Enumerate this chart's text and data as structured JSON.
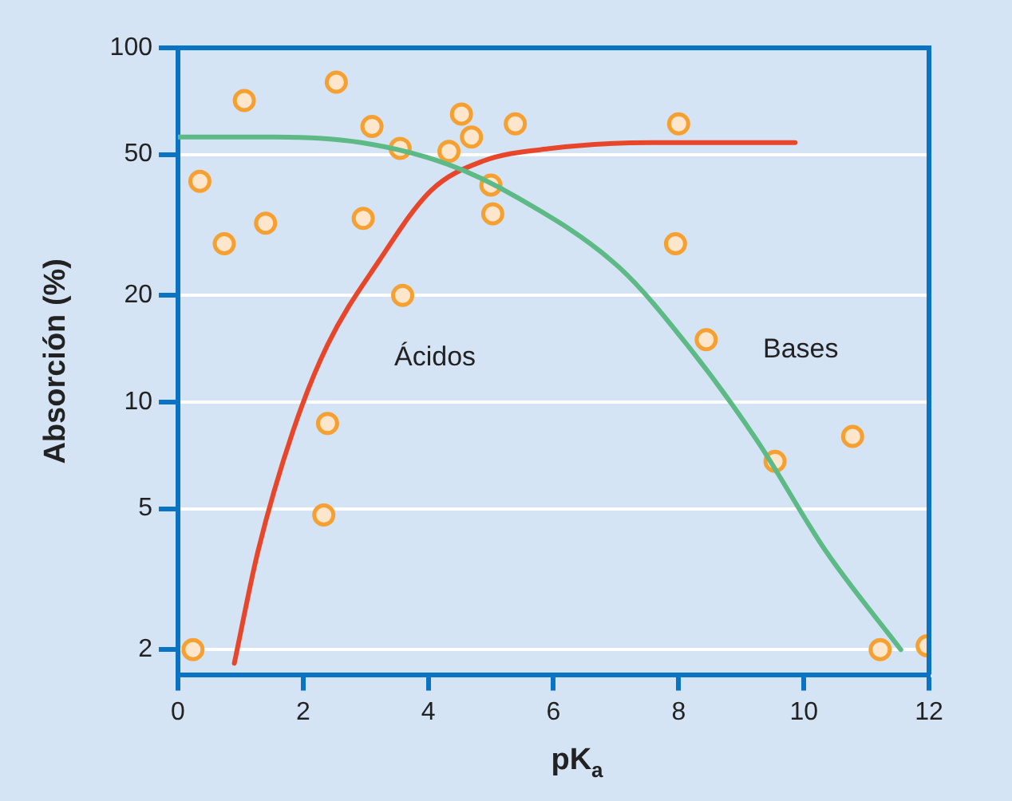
{
  "chart_data": {
    "type": "scatter",
    "xlabel": "pK$_{a}$",
    "ylabel": "Absorción (%)",
    "xlim": [
      0,
      12
    ],
    "xticks": [
      0,
      2,
      4,
      6,
      8,
      10,
      12
    ],
    "ylim": [
      1.7,
      100
    ],
    "yticks": [
      2,
      5,
      10,
      20,
      50,
      100
    ],
    "log": "y",
    "grid": "y",
    "legend": false,
    "marker": "circle",
    "annotations": [
      "Ácidos",
      "Bases"
    ],
    "series": [
      {
        "color": "#f5a030",
        "x": [
          0.35,
          1.06,
          0.74,
          1.4,
          2.53,
          3.1,
          3.55,
          2.96,
          3.59,
          2.39,
          2.33,
          0.24,
          4.33,
          4.53,
          4.69,
          5.0,
          5.03,
          5.39,
          8.0,
          7.95,
          8.44,
          9.54,
          10.78,
          11.22,
          11.97
        ],
        "values": [
          42,
          71,
          28,
          32,
          80,
          60,
          52,
          33,
          20,
          8.7,
          4.8,
          2,
          51,
          65,
          56,
          41,
          34,
          61,
          61,
          28,
          15,
          6.8,
          8,
          2,
          2.05
        ]
      },
      {
        "type": "line",
        "color": "#e8462a",
        "marker": "none",
        "x": [
          0.9,
          1.28,
          1.84,
          2.39,
          3.21,
          4.04,
          4.86,
          5.96,
          7.6,
          9.86
        ],
        "values": [
          1.83,
          3.8,
          8.3,
          14.5,
          25,
          39.5,
          47.8,
          52,
          54,
          54
        ]
      },
      {
        "type": "line",
        "color": "#5db985",
        "marker": "none",
        "x": [
          0,
          1.56,
          2.93,
          4.3,
          5.4,
          7.05,
          8.15,
          9.25,
          10.35,
          11.55
        ],
        "values": [
          56,
          56,
          54,
          47,
          38,
          24,
          14.4,
          7.8,
          3.8,
          2.0
        ]
      }
    ]
  }
}
